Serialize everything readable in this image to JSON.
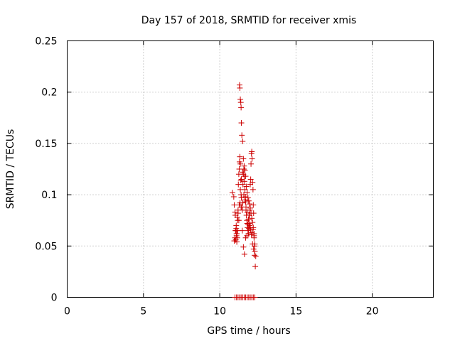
{
  "chart_data": {
    "type": "scatter",
    "title": "Day 157 of 2018, SRMTID for receiver xmis",
    "xlabel": "GPS time / hours",
    "ylabel": "SRMTID / TECUs",
    "xlim": [
      0,
      24
    ],
    "ylim": [
      0,
      0.25
    ],
    "xticks": [
      0,
      5,
      10,
      15,
      20
    ],
    "xtick_labels": [
      "0",
      "5",
      "10",
      "15",
      "20"
    ],
    "yticks": [
      0,
      0.05,
      0.1,
      0.15,
      0.2,
      0.25
    ],
    "ytick_labels": [
      "0",
      "0.05",
      "0.1",
      "0.15",
      "0.2",
      "0.25"
    ],
    "grid": true,
    "marker": "+",
    "color": "#cc0000",
    "series": [
      {
        "name": "SRMTID",
        "x": [
          10.83,
          10.92,
          10.95,
          11.0,
          11.03,
          11.05,
          11.08,
          11.1,
          11.12,
          11.15,
          11.18,
          11.2,
          11.22,
          11.25,
          11.28,
          11.3,
          11.32,
          11.35,
          11.38,
          11.4,
          11.42,
          11.45,
          11.48,
          11.5,
          11.52,
          11.55,
          11.58,
          11.6,
          11.62,
          11.65,
          11.68,
          11.7,
          11.72,
          11.75,
          11.78,
          11.8,
          11.82,
          11.85,
          11.88,
          11.9,
          11.92,
          11.95,
          11.98,
          12.0,
          12.03,
          12.05,
          12.08,
          12.1,
          12.12,
          12.15,
          12.18,
          12.2,
          12.22,
          12.25,
          12.28,
          12.3,
          12.33,
          12.36,
          10.95,
          11.0,
          11.05,
          11.1,
          11.15,
          11.2,
          11.28,
          11.35,
          11.42,
          11.5,
          11.58,
          11.65,
          11.72,
          11.8,
          11.88,
          11.95,
          12.02,
          12.1,
          12.18,
          12.25,
          12.3,
          11.3,
          11.32,
          11.35,
          11.38,
          11.4,
          11.42,
          11.45,
          11.5,
          11.55,
          11.6,
          11.65,
          11.7,
          11.75,
          11.8,
          11.85,
          11.9,
          11.95,
          12.0,
          12.05,
          12.1,
          12.15,
          12.2,
          12.25,
          11.02,
          11.08,
          11.12,
          11.18,
          11.25,
          11.33,
          11.4,
          11.48,
          11.55,
          11.62,
          11.7,
          11.78,
          11.85,
          11.92,
          12.0,
          12.08,
          12.15,
          12.22,
          12.28,
          11.0,
          11.1,
          11.2,
          11.3,
          11.4,
          11.5,
          11.6,
          11.7,
          11.8,
          11.9,
          12.0,
          12.1,
          12.2,
          12.3
        ],
        "y": [
          0.102,
          0.098,
          0.09,
          0.083,
          0.065,
          0.056,
          0.067,
          0.06,
          0.054,
          0.058,
          0.075,
          0.085,
          0.11,
          0.12,
          0.125,
          0.132,
          0.137,
          0.13,
          0.114,
          0.1,
          0.097,
          0.088,
          0.085,
          0.092,
          0.11,
          0.12,
          0.125,
          0.118,
          0.113,
          0.105,
          0.098,
          0.093,
          0.088,
          0.08,
          0.075,
          0.072,
          0.068,
          0.065,
          0.062,
          0.067,
          0.072,
          0.08,
          0.085,
          0.11,
          0.115,
          0.13,
          0.14,
          0.142,
          0.135,
          0.112,
          0.105,
          0.09,
          0.082,
          0.06,
          0.05,
          0.045,
          0.03,
          0.04,
          0.055,
          0.058,
          0.065,
          0.062,
          0.078,
          0.082,
          0.09,
          0.105,
          0.115,
          0.122,
          0.1,
          0.095,
          0.085,
          0.083,
          0.076,
          0.07,
          0.066,
          0.063,
          0.066,
          0.058,
          0.052,
          0.207,
          0.204,
          0.193,
          0.19,
          0.185,
          0.17,
          0.158,
          0.152,
          0.135,
          0.128,
          0.124,
          0.118,
          0.108,
          0.102,
          0.097,
          0.094,
          0.091,
          0.087,
          0.082,
          0.077,
          0.073,
          0.068,
          0.062,
          0.08,
          0.07,
          0.062,
          0.065,
          0.075,
          0.092,
          0.088,
          0.065,
          0.049,
          0.042,
          0.058,
          0.06,
          0.071,
          0.08,
          0.068,
          0.061,
          0.052,
          0.047,
          0.041,
          0,
          0,
          0,
          0,
          0,
          0,
          0,
          0,
          0,
          0,
          0,
          0,
          0,
          0
        ]
      }
    ]
  }
}
